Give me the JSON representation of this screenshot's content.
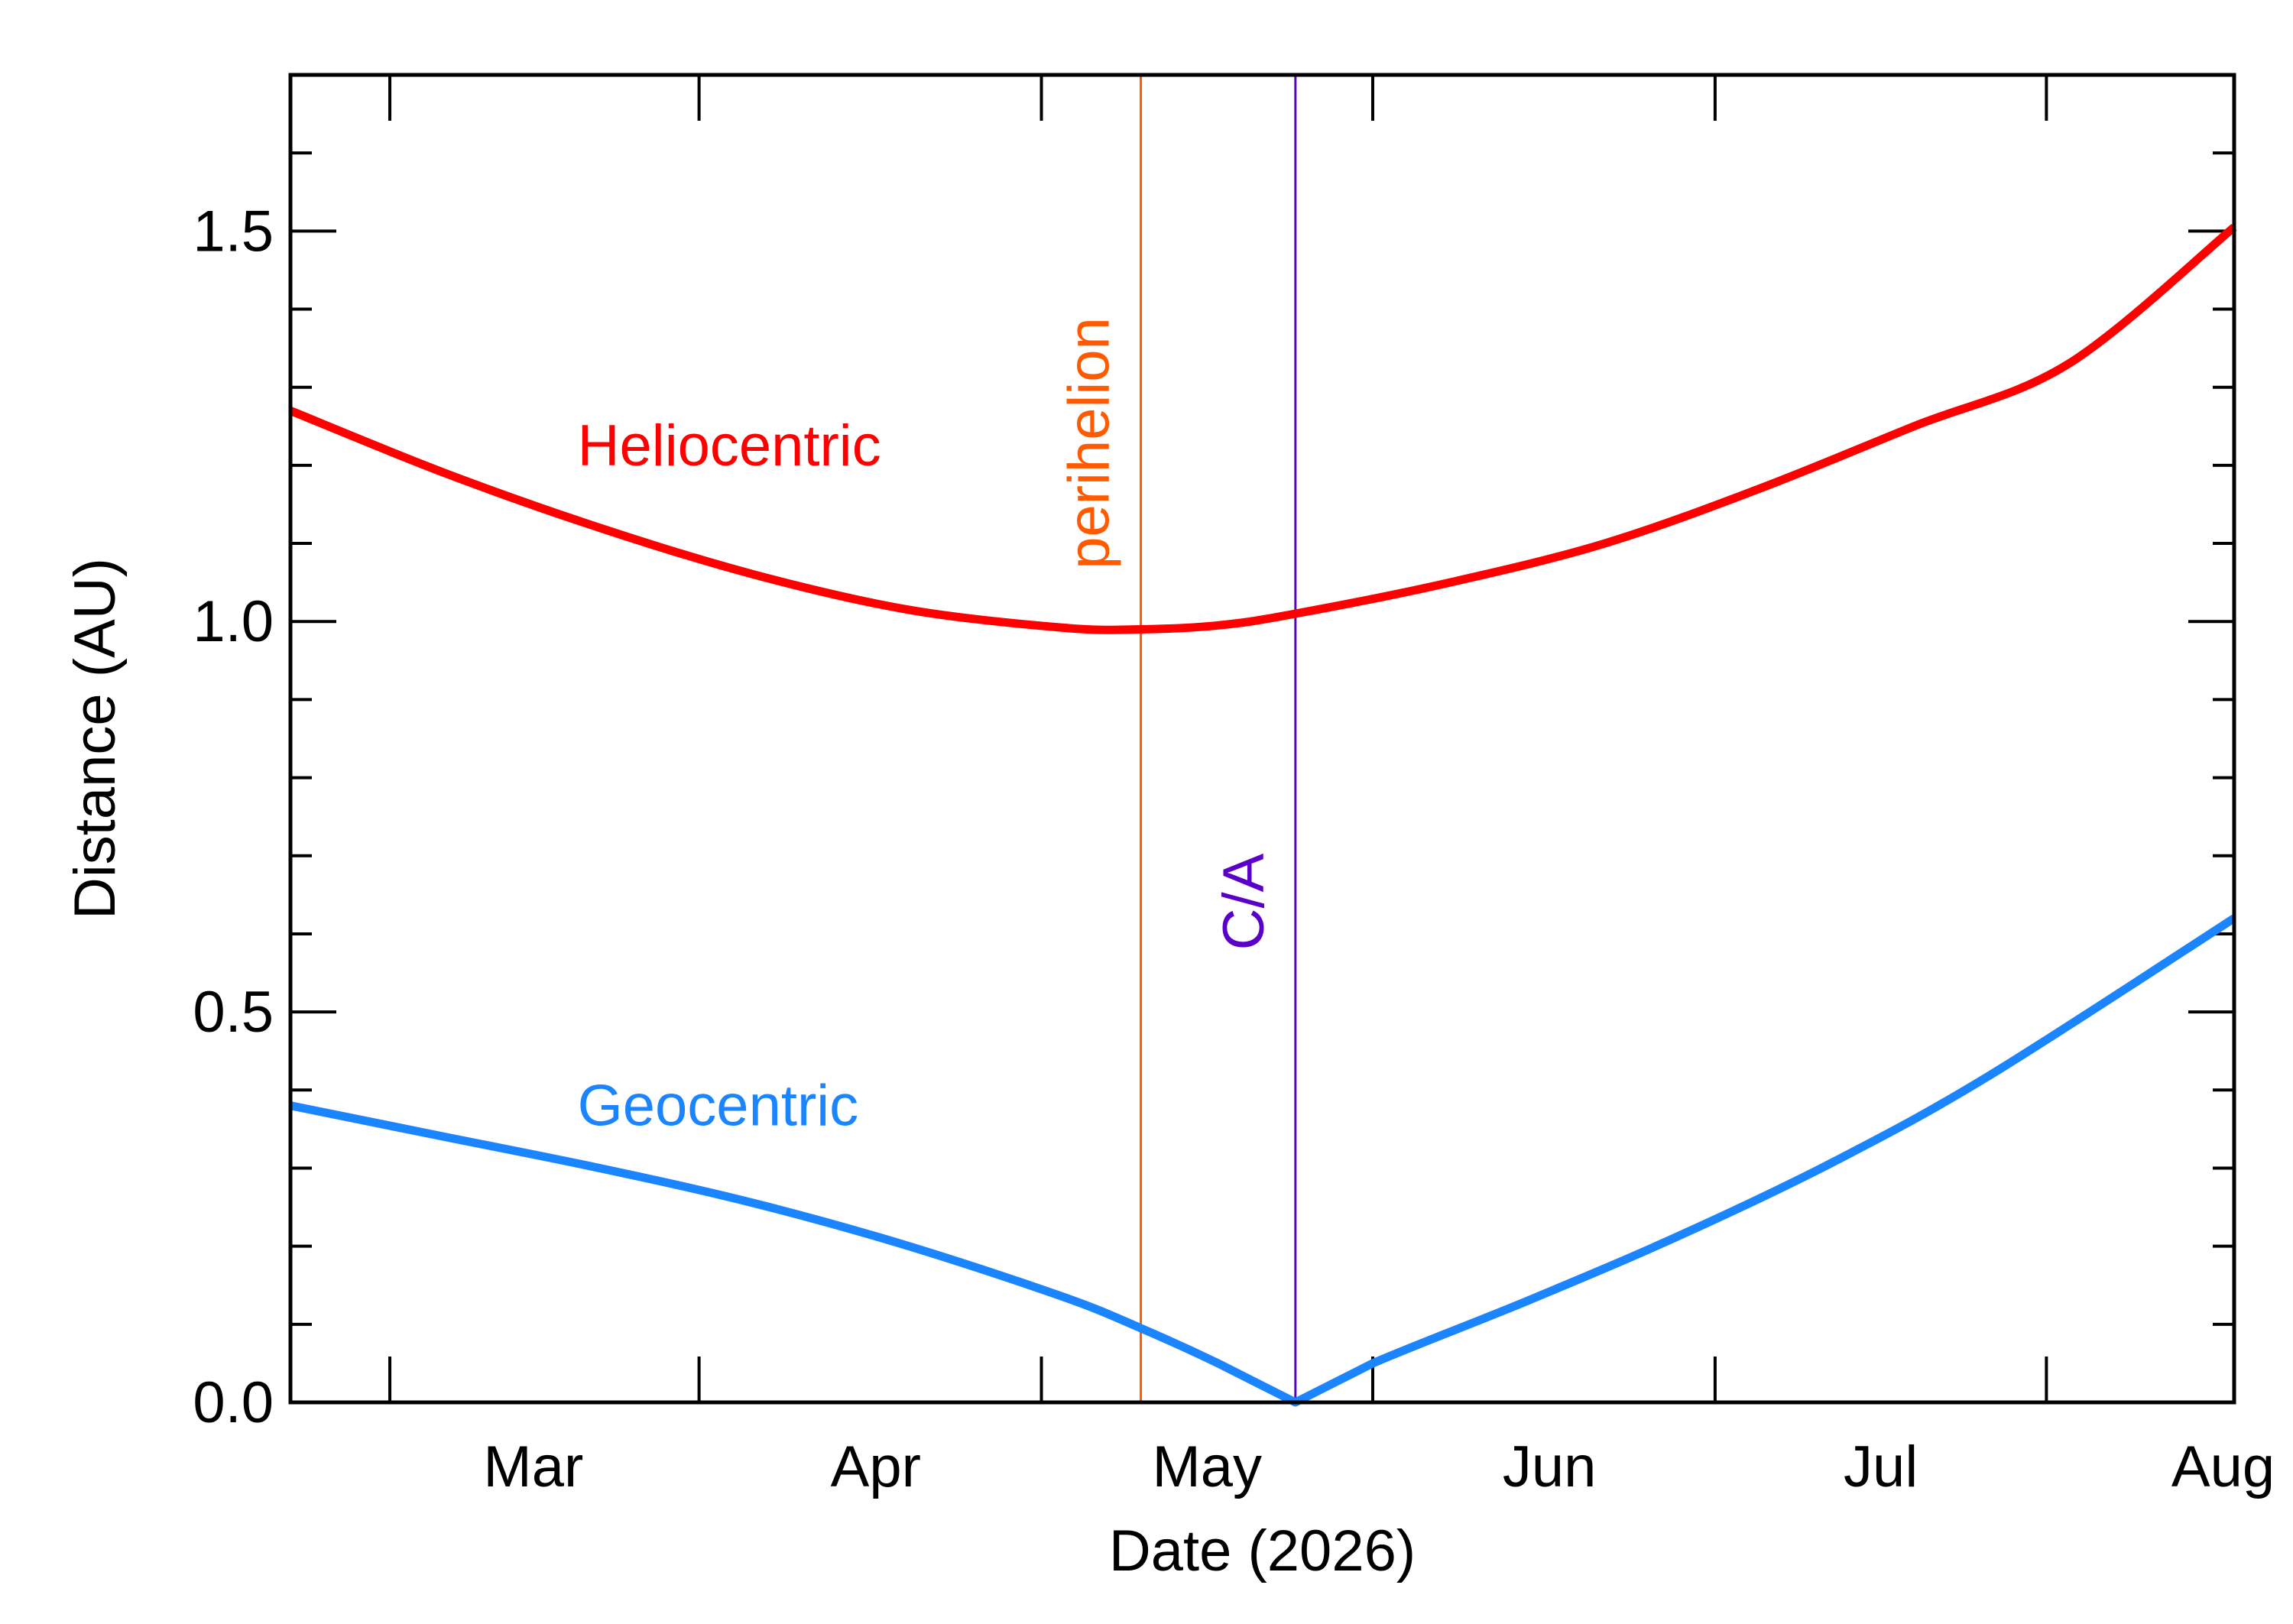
{
  "chart_data": {
    "type": "line",
    "xlabel": "Date (2026)",
    "ylabel": "Distance (AU)",
    "x_domain": [
      "2026-02-06",
      "2026-08-01"
    ],
    "ylim": [
      0.0,
      1.7
    ],
    "y_major_ticks": [
      {
        "value": 0.0,
        "label": "0.0"
      },
      {
        "value": 0.5,
        "label": "0.5"
      },
      {
        "value": 1.0,
        "label": "1.0"
      },
      {
        "value": 1.5,
        "label": "1.5"
      }
    ],
    "y_minor_step": 0.1,
    "x_major_ticks": [
      {
        "date": "2026-02-15",
        "label": ""
      },
      {
        "date": "2026-03-15",
        "label": "Mar"
      },
      {
        "date": "2026-04-15",
        "label": "Apr"
      },
      {
        "date": "2026-05-15",
        "label": "May"
      },
      {
        "date": "2026-06-15",
        "label": "Jun"
      },
      {
        "date": "2026-07-15",
        "label": "Jul"
      }
    ],
    "x_label_positions": [
      {
        "date": "2026-02-28",
        "label": "Mar"
      },
      {
        "date": "2026-03-31",
        "label": "Apr"
      },
      {
        "date": "2026-04-30",
        "label": "May"
      },
      {
        "date": "2026-05-31",
        "label": "Jun"
      },
      {
        "date": "2026-06-30",
        "label": "Jul"
      },
      {
        "date": "2026-07-31",
        "label": "Aug"
      }
    ],
    "series": [
      {
        "name": "Heliocentric",
        "color": "#ff0000",
        "points": [
          [
            "2026-02-06",
            1.27
          ],
          [
            "2026-02-20",
            1.19
          ],
          [
            "2026-03-06",
            1.12
          ],
          [
            "2026-03-20",
            1.06
          ],
          [
            "2026-04-03",
            1.015
          ],
          [
            "2026-04-17",
            0.992
          ],
          [
            "2026-04-24",
            0.99
          ],
          [
            "2026-05-01",
            0.995
          ],
          [
            "2026-05-08",
            1.01
          ],
          [
            "2026-05-22",
            1.05
          ],
          [
            "2026-06-05",
            1.1
          ],
          [
            "2026-06-19",
            1.17
          ],
          [
            "2026-07-03",
            1.25
          ],
          [
            "2026-07-17",
            1.33
          ],
          [
            "2026-08-01",
            1.505
          ]
        ]
      },
      {
        "name": "Geocentric",
        "color": "#1a85ff",
        "points": [
          [
            "2026-02-06",
            0.38
          ],
          [
            "2026-02-20",
            0.34
          ],
          [
            "2026-03-06",
            0.3
          ],
          [
            "2026-03-20",
            0.255
          ],
          [
            "2026-04-03",
            0.2
          ],
          [
            "2026-04-17",
            0.135
          ],
          [
            "2026-04-24",
            0.095
          ],
          [
            "2026-05-01",
            0.05
          ],
          [
            "2026-05-08",
            0.0
          ],
          [
            "2026-05-15",
            0.05
          ],
          [
            "2026-05-29",
            0.13
          ],
          [
            "2026-06-12",
            0.215
          ],
          [
            "2026-06-26",
            0.31
          ],
          [
            "2026-07-10",
            0.42
          ],
          [
            "2026-08-01",
            0.62
          ]
        ]
      }
    ],
    "vertical_markers": [
      {
        "label": "perihelion",
        "date": "2026-04-24",
        "color": "#ff5a00"
      },
      {
        "label": "C/A",
        "date": "2026-05-08",
        "color": "#5a00c8"
      }
    ],
    "annotations": [
      {
        "text": "Heliocentric",
        "date": "2026-03-04",
        "value": 1.2,
        "color": "#ff0000"
      },
      {
        "text": "Geocentric",
        "date": "2026-03-04",
        "value": 0.355,
        "color": "#1a85ff"
      }
    ],
    "grid": false,
    "legend": "none"
  }
}
